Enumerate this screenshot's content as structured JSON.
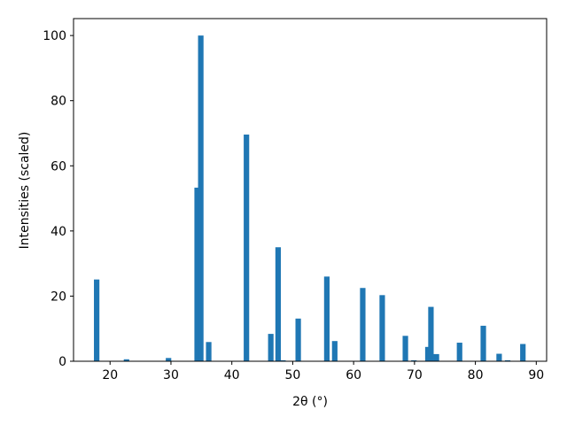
{
  "chart_data": {
    "type": "bar",
    "xlabel": "2θ (°)",
    "ylabel": "Intensities (scaled)",
    "x": [
      17.8,
      22.7,
      29.6,
      34.3,
      34.9,
      36.2,
      42.4,
      46.4,
      47.6,
      48.4,
      50.9,
      55.6,
      56.9,
      61.5,
      64.7,
      68.5,
      69.9,
      72.2,
      72.7,
      73.6,
      77.4,
      81.3,
      83.9,
      85.3,
      87.8
    ],
    "values": [
      25.1,
      0.6,
      1.0,
      53.3,
      100,
      5.9,
      69.6,
      8.4,
      35.0,
      0.3,
      13.1,
      26.0,
      6.2,
      22.5,
      20.3,
      7.8,
      0.3,
      4.4,
      16.7,
      2.2,
      5.7,
      10.9,
      2.3,
      0.3,
      5.3
    ],
    "color": "#1f77b4",
    "xlim": [
      14,
      91.7
    ],
    "xticks": [
      20,
      30,
      40,
      50,
      60,
      70,
      80,
      90
    ],
    "ylim": [
      0,
      105.2
    ],
    "yticks": [
      0,
      20,
      40,
      60,
      80,
      100
    ],
    "grid": false
  }
}
